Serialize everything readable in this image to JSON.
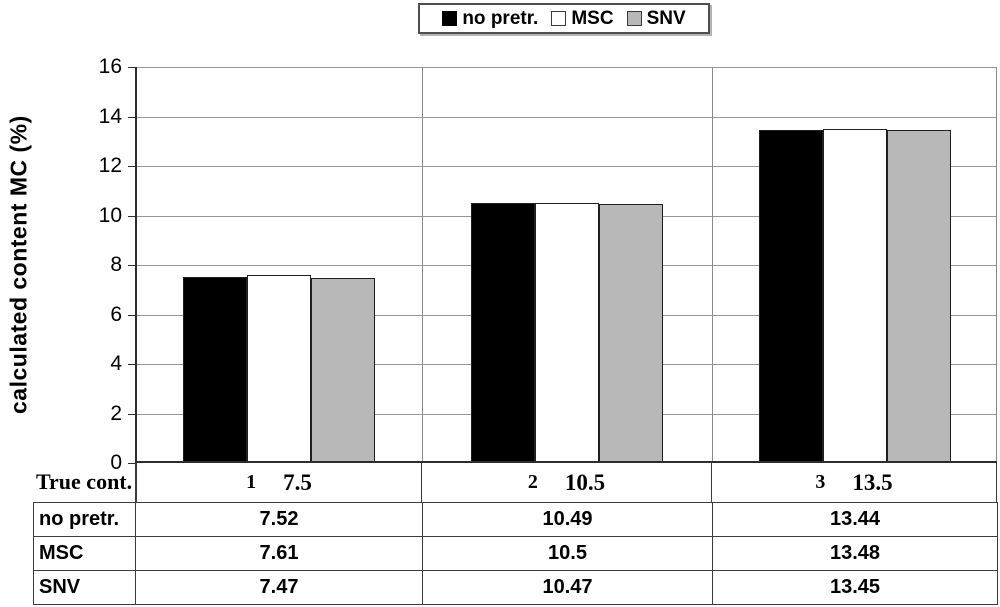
{
  "legend": {
    "items": [
      {
        "label": "no pretr.",
        "color": "#000000"
      },
      {
        "label": "MSC",
        "color": "#ffffff"
      },
      {
        "label": "SNV",
        "color": "#b8b8b8"
      }
    ]
  },
  "y_axis": {
    "title": "calculated content MC (%)",
    "ticks": [
      "0",
      "2",
      "4",
      "6",
      "8",
      "10",
      "12",
      "14",
      "16"
    ]
  },
  "chart_data": {
    "type": "bar",
    "title": "",
    "categories": [
      "1",
      "2",
      "3"
    ],
    "series": [
      {
        "name": "no pretr.",
        "color": "#000000",
        "values": [
          7.52,
          10.49,
          13.44
        ]
      },
      {
        "name": "MSC",
        "color": "#ffffff",
        "values": [
          7.61,
          10.5,
          13.48
        ]
      },
      {
        "name": "SNV",
        "color": "#b8b8b8",
        "values": [
          7.47,
          10.47,
          13.45
        ]
      }
    ],
    "xlabel": "",
    "ylabel": "calculated content MC (%)",
    "ylim": [
      0,
      16
    ],
    "ytick_step": 2,
    "grid": true,
    "legend_position": "top-center"
  },
  "table": {
    "corner_label": "True cont.",
    "true_cont_values": [
      "7.5",
      "10.5",
      "13.5"
    ],
    "rows": [
      {
        "label": "no pretr.",
        "values": [
          "7.52",
          "10.49",
          "13.44"
        ]
      },
      {
        "label": "MSC",
        "values": [
          "7.61",
          "10.5",
          "13.48"
        ]
      },
      {
        "label": "SNV",
        "values": [
          "7.47",
          "10.47",
          "13.45"
        ]
      }
    ]
  },
  "colors": {
    "gridline": "#969696",
    "axis": "#2d2d2d",
    "bar_border": "#1f1f1f",
    "table_border": "#3c3c3c"
  }
}
